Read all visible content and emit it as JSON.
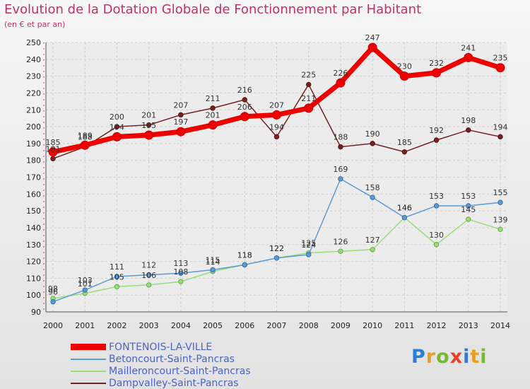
{
  "title": "Evolution de la Dotation Globale de Fonctionnement par Habitant",
  "subtitle": "(en € et par an)",
  "logo": {
    "text": "Proxiti",
    "letter_colors": [
      "#2a7fd4",
      "#e8a020",
      "#7ab82e",
      "#e8402a",
      "#2a7fd4",
      "#e8a020",
      "#7ab82e"
    ]
  },
  "chart_data": {
    "type": "line",
    "title": "Evolution de la Dotation Globale de Fonctionnement par Habitant",
    "subtitle": "(en € et par an)",
    "x": [
      "2000",
      "2001",
      "2002",
      "2003",
      "2004",
      "2005",
      "2006",
      "2007",
      "2008",
      "2009",
      "2010",
      "2011",
      "2012",
      "2013",
      "2014"
    ],
    "ylim": [
      90,
      250
    ],
    "yticks": [
      90,
      100,
      110,
      120,
      130,
      140,
      150,
      160,
      170,
      180,
      190,
      200,
      210,
      220,
      230,
      240,
      250
    ],
    "grid": true,
    "legend_position": "bottom-left",
    "series": [
      {
        "name": "FONTENOIS-LA-VILLE",
        "color": "#ee0000",
        "values": [
          185,
          189,
          194,
          195,
          197,
          201,
          206,
          207,
          211,
          226,
          247,
          230,
          232,
          241,
          235
        ]
      },
      {
        "name": "Betoncourt-Saint-Pancras",
        "color": "#5b9bd5",
        "values": [
          96,
          103,
          111,
          112,
          113,
          115,
          118,
          122,
          124,
          169,
          158,
          146,
          153,
          153,
          155
        ]
      },
      {
        "name": "Mailleroncourt-Saint-Pancras",
        "color": "#99dd77",
        "values": [
          98,
          101,
          105,
          106,
          108,
          114,
          118,
          122,
          125,
          126,
          127,
          146,
          130,
          145,
          139
        ]
      },
      {
        "name": "Dampvalley-Saint-Pancras",
        "color": "#772222",
        "values": [
          181,
          188,
          200,
          201,
          207,
          211,
          216,
          194,
          225,
          188,
          190,
          185,
          192,
          198,
          194
        ]
      }
    ]
  }
}
